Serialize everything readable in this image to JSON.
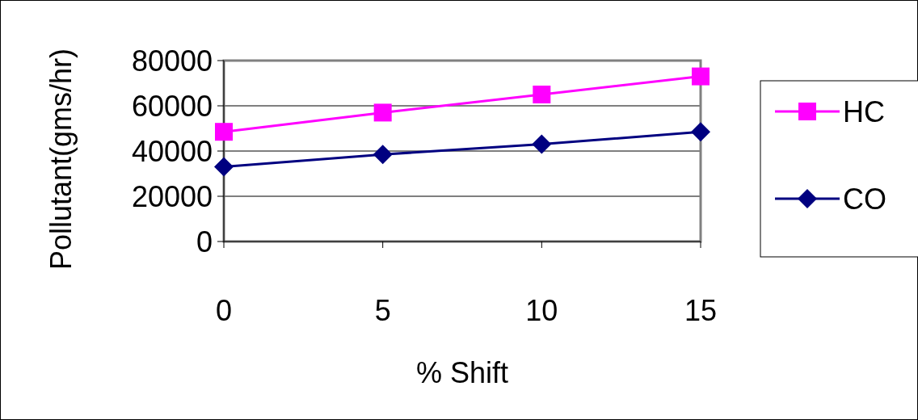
{
  "chart_data": {
    "type": "line",
    "xlabel": "% Shift",
    "ylabel": "Pollutant(gms/hr)",
    "categories": [
      "0",
      "5",
      "10",
      "15"
    ],
    "series": [
      {
        "name": "HC",
        "color": "#ff00ff",
        "marker": "square",
        "values": [
          48500,
          57000,
          65000,
          73000
        ]
      },
      {
        "name": "CO",
        "color": "#000080",
        "marker": "diamond",
        "values": [
          33000,
          38500,
          43000,
          48500
        ]
      }
    ],
    "ylim": [
      0,
      80000
    ],
    "yticks": [
      0,
      20000,
      40000,
      60000,
      80000
    ],
    "grid": "y",
    "legend": "right"
  }
}
